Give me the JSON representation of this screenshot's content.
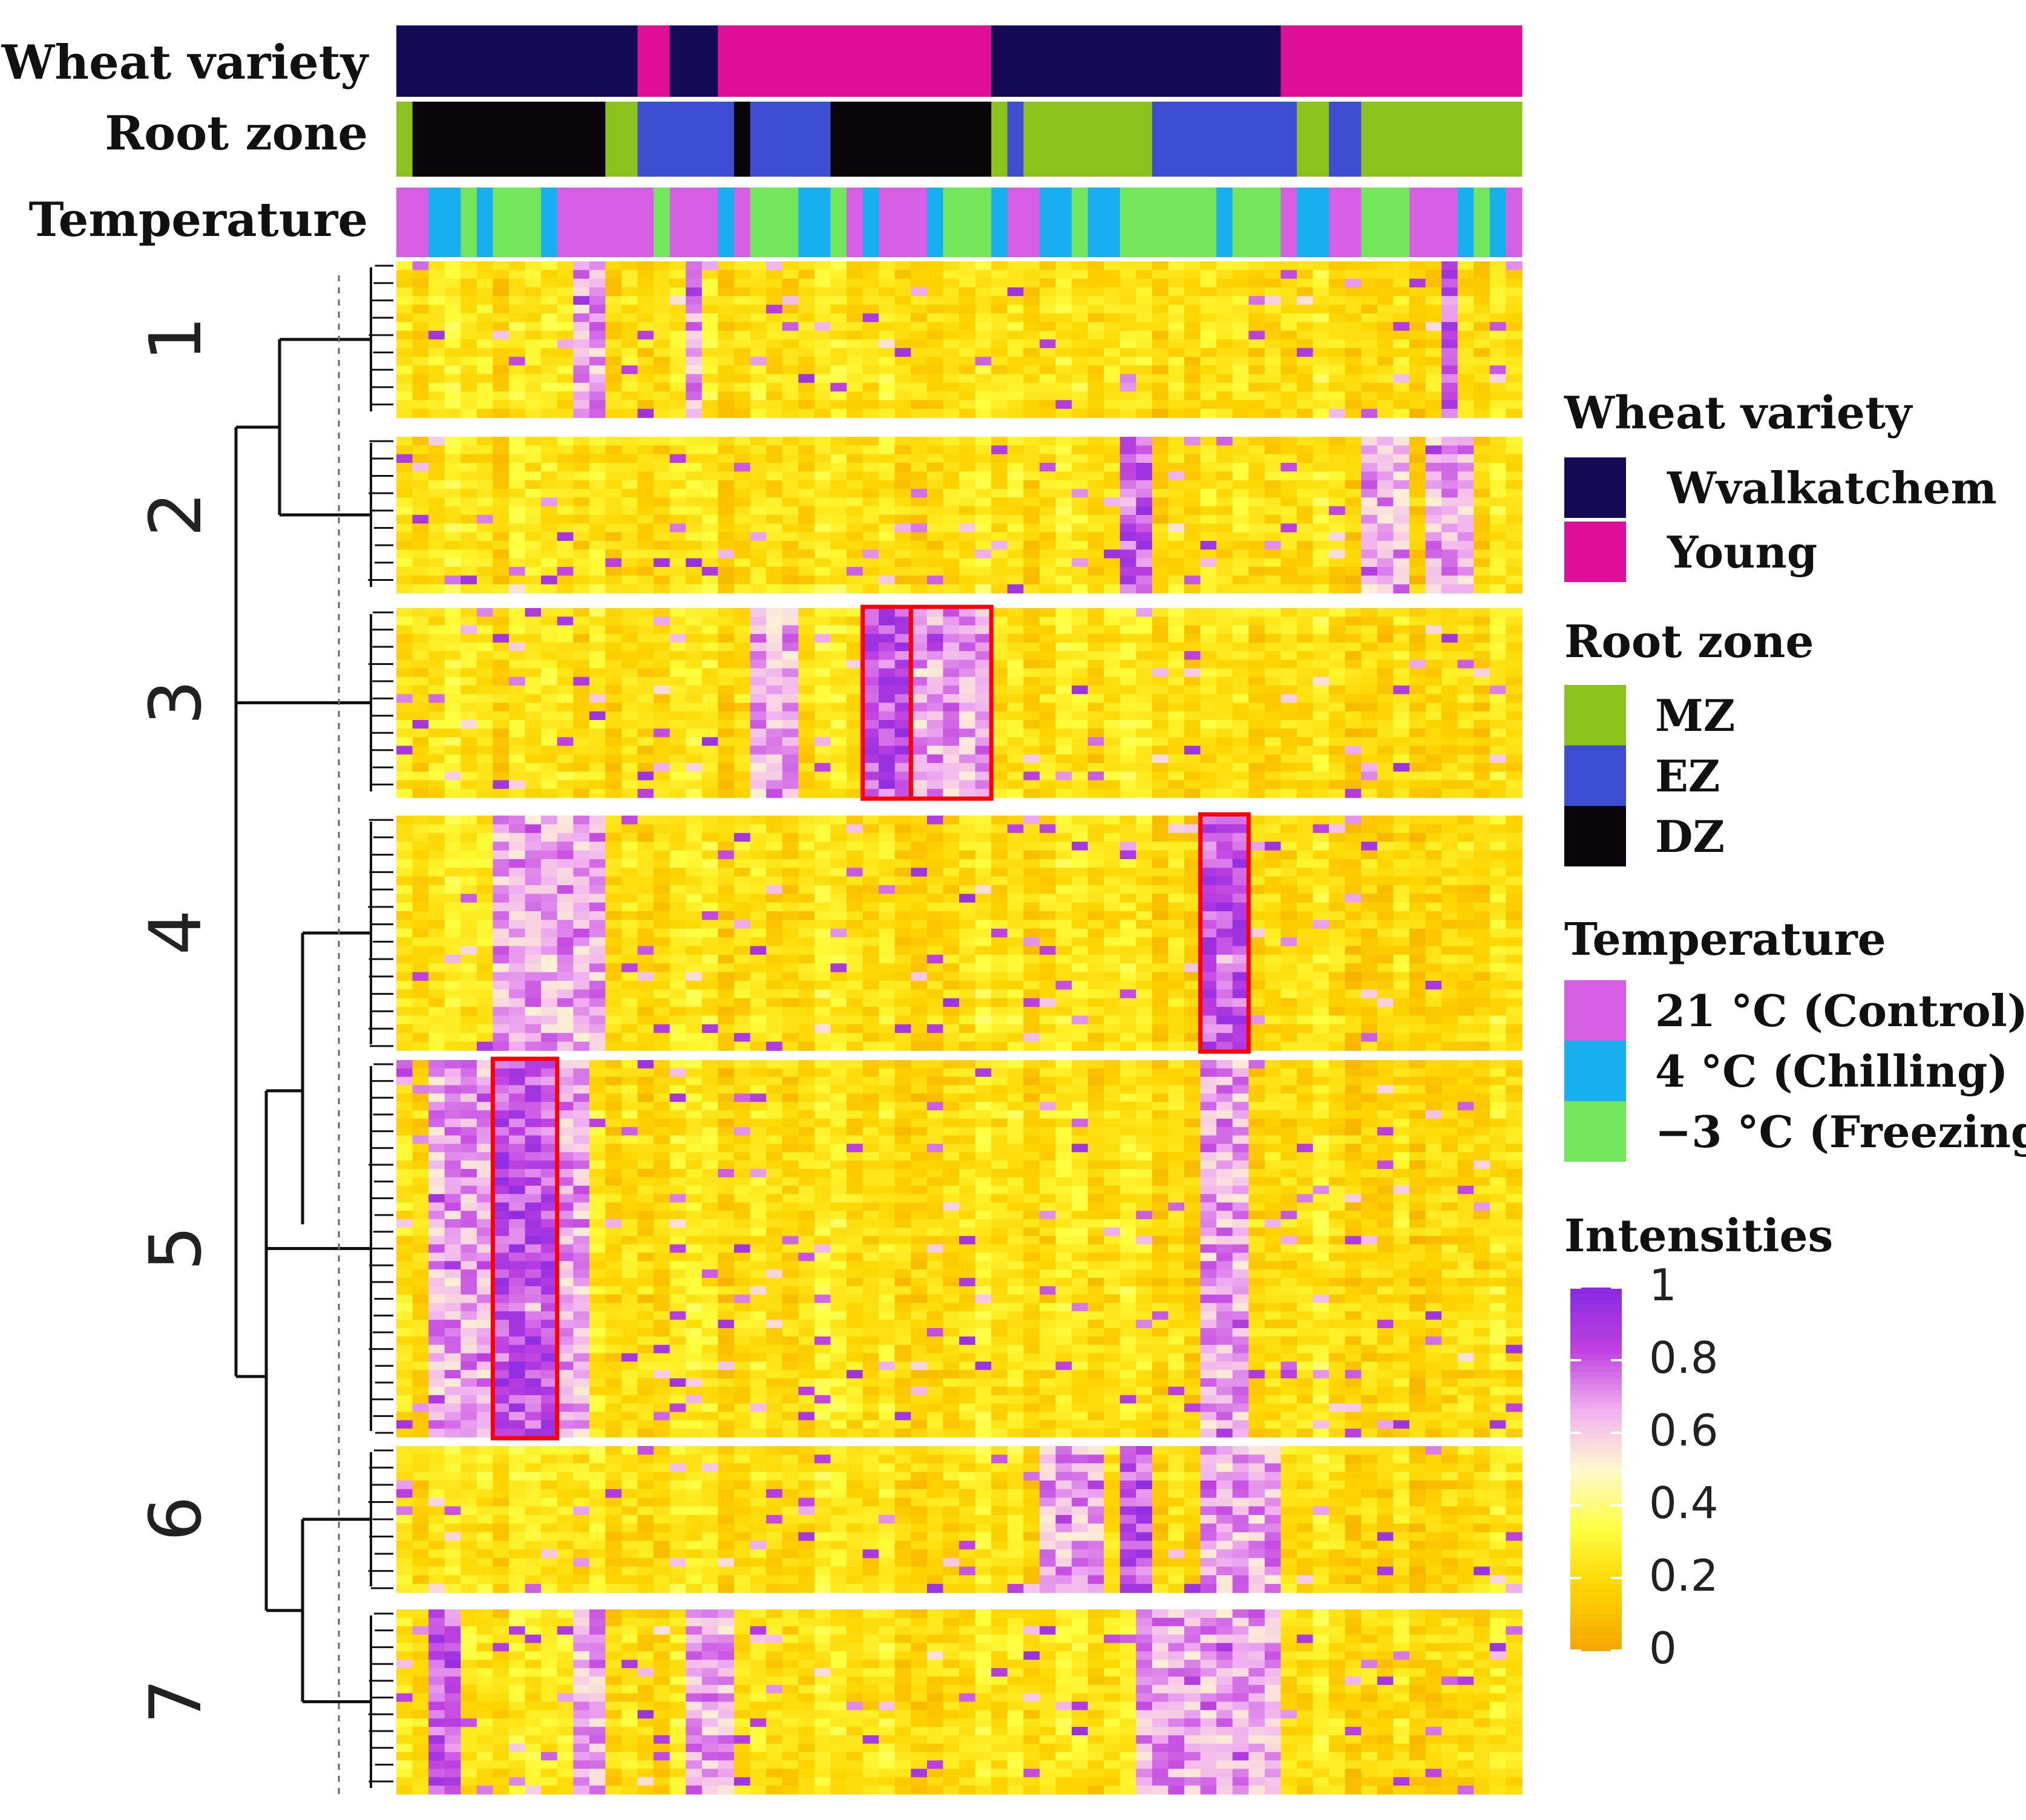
{
  "chart_data": {
    "type": "heatmap",
    "annotation_tracks": [
      {
        "name": "Wheat variety",
        "segments": [
          {
            "level": "Wvalkatchem",
            "columns": 15
          },
          {
            "level": "Young",
            "columns": 2
          },
          {
            "level": "Wvalkatchem",
            "columns": 3
          },
          {
            "level": "Young",
            "columns": 17
          },
          {
            "level": "Wvalkatchem",
            "columns": 18
          },
          {
            "level": "Young",
            "columns": 15
          }
        ]
      },
      {
        "name": "Root zone",
        "segments": [
          {
            "level": "MZ",
            "columns": 1
          },
          {
            "level": "DZ",
            "columns": 12
          },
          {
            "level": "MZ",
            "columns": 2
          },
          {
            "level": "EZ",
            "columns": 6
          },
          {
            "level": "DZ",
            "columns": 1
          },
          {
            "level": "EZ",
            "columns": 5
          },
          {
            "level": "DZ",
            "columns": 10
          },
          {
            "level": "MZ",
            "columns": 1
          },
          {
            "level": "EZ",
            "columns": 1
          },
          {
            "level": "MZ",
            "columns": 8
          },
          {
            "level": "EZ",
            "columns": 9
          },
          {
            "level": "MZ",
            "columns": 2
          },
          {
            "level": "EZ",
            "columns": 2
          },
          {
            "level": "MZ",
            "columns": 10
          }
        ]
      },
      {
        "name": "Temperature",
        "segments": [
          {
            "level": "21 °C (Control)",
            "columns": 2
          },
          {
            "level": "4 °C (Chilling)",
            "columns": 2
          },
          {
            "level": "−3 °C (Freezing)",
            "columns": 1
          },
          {
            "level": "4 °C (Chilling)",
            "columns": 1
          },
          {
            "level": "−3 °C (Freezing)",
            "columns": 3
          },
          {
            "level": "4 °C (Chilling)",
            "columns": 1
          },
          {
            "level": "21 °C (Control)",
            "columns": 6
          },
          {
            "level": "−3 °C (Freezing)",
            "columns": 1
          },
          {
            "level": "21 °C (Control)",
            "columns": 3
          },
          {
            "level": "4 °C (Chilling)",
            "columns": 1
          },
          {
            "level": "21 °C (Control)",
            "columns": 1
          },
          {
            "level": "−3 °C (Freezing)",
            "columns": 3
          },
          {
            "level": "4 °C (Chilling)",
            "columns": 2
          },
          {
            "level": "−3 °C (Freezing)",
            "columns": 1
          },
          {
            "level": "21 °C (Control)",
            "columns": 1
          },
          {
            "level": "4 °C (Chilling)",
            "columns": 1
          },
          {
            "level": "21 °C (Control)",
            "columns": 3
          },
          {
            "level": "4 °C (Chilling)",
            "columns": 1
          },
          {
            "level": "−3 °C (Freezing)",
            "columns": 3
          },
          {
            "level": "4 °C (Chilling)",
            "columns": 1
          },
          {
            "level": "21 °C (Control)",
            "columns": 2
          },
          {
            "level": "4 °C (Chilling)",
            "columns": 2
          },
          {
            "level": "−3 °C (Freezing)",
            "columns": 1
          },
          {
            "level": "4 °C (Chilling)",
            "columns": 2
          },
          {
            "level": "−3 °C (Freezing)",
            "columns": 6
          },
          {
            "level": "4 °C (Chilling)",
            "columns": 1
          },
          {
            "level": "−3 °C (Freezing)",
            "columns": 3
          },
          {
            "level": "21 °C (Control)",
            "columns": 1
          },
          {
            "level": "4 °C (Chilling)",
            "columns": 2
          },
          {
            "level": "21 °C (Control)",
            "columns": 2
          },
          {
            "level": "−3 °C (Freezing)",
            "columns": 3
          },
          {
            "level": "21 °C (Control)",
            "columns": 3
          },
          {
            "level": "4 °C (Chilling)",
            "columns": 1
          },
          {
            "level": "−3 °C (Freezing)",
            "columns": 1
          },
          {
            "level": "4 °C (Chilling)",
            "columns": 1
          },
          {
            "level": "21 °C (Control)",
            "columns": 1
          }
        ]
      }
    ],
    "n_columns": 70,
    "clusters": [
      {
        "label": "1",
        "rows": 18,
        "high_columns": [
          [
            65,
            65
          ],
          [
            11,
            12
          ],
          [
            18,
            18
          ]
        ]
      },
      {
        "label": "2",
        "rows": 18,
        "high_columns": [
          [
            45,
            46
          ],
          [
            64,
            66
          ],
          [
            60,
            62
          ]
        ]
      },
      {
        "label": "3",
        "rows": 22,
        "high_columns": [
          [
            29,
            31
          ],
          [
            32,
            36
          ],
          [
            22,
            24
          ]
        ]
      },
      {
        "label": "4",
        "rows": 27,
        "high_columns": [
          [
            50,
            52
          ],
          [
            6,
            12
          ]
        ]
      },
      {
        "label": "5",
        "rows": 45,
        "high_columns": [
          [
            6,
            9
          ],
          [
            2,
            5
          ],
          [
            50,
            52
          ],
          [
            10,
            11
          ]
        ]
      },
      {
        "label": "6",
        "rows": 17,
        "high_columns": [
          [
            45,
            46
          ],
          [
            50,
            54
          ],
          [
            40,
            43
          ]
        ]
      },
      {
        "label": "7",
        "rows": 22,
        "high_columns": [
          [
            2,
            3
          ],
          [
            11,
            12
          ],
          [
            46,
            54
          ],
          [
            18,
            20
          ]
        ]
      }
    ],
    "highlight_boxes": [
      {
        "cluster": "3",
        "columns": [
          29,
          31
        ]
      },
      {
        "cluster": "3",
        "columns": [
          32,
          36
        ]
      },
      {
        "cluster": "4",
        "columns": [
          50,
          52
        ]
      },
      {
        "cluster": "5",
        "columns": [
          6,
          9
        ]
      }
    ],
    "colorbar": {
      "title": "Intensities",
      "range": [
        0,
        1
      ],
      "ticks": [
        "1",
        "0.8",
        "0.6",
        "0.4",
        "0.2",
        "0"
      ]
    },
    "legend": [
      {
        "title": "Wheat variety",
        "entries": [
          "Wvalkatchem",
          "Young"
        ]
      },
      {
        "title": "Root zone",
        "entries": [
          "MZ",
          "EZ",
          "DZ"
        ]
      },
      {
        "title": "Temperature",
        "entries": [
          "21 °C (Control)",
          "4 °C (Chilling)",
          "−3 °C (Freezing)"
        ]
      }
    ]
  },
  "colors": {
    "Wvalkatchem": "#140a55",
    "Young": "#e00f9a",
    "MZ": "#8cc21c",
    "EZ": "#3d4ed2",
    "DZ": "#0a0508",
    "21 °C (Control)": "#d65fe6",
    "4 °C (Chilling)": "#17aff0",
    "−3 °C (Freezing)": "#74e65c",
    "highlight": "#ff0000",
    "scale": [
      "#f5a800",
      "#ffd400",
      "#ffff40",
      "#fff8d0",
      "#f0b0f0",
      "#c040e0",
      "#8a2be2"
    ]
  }
}
